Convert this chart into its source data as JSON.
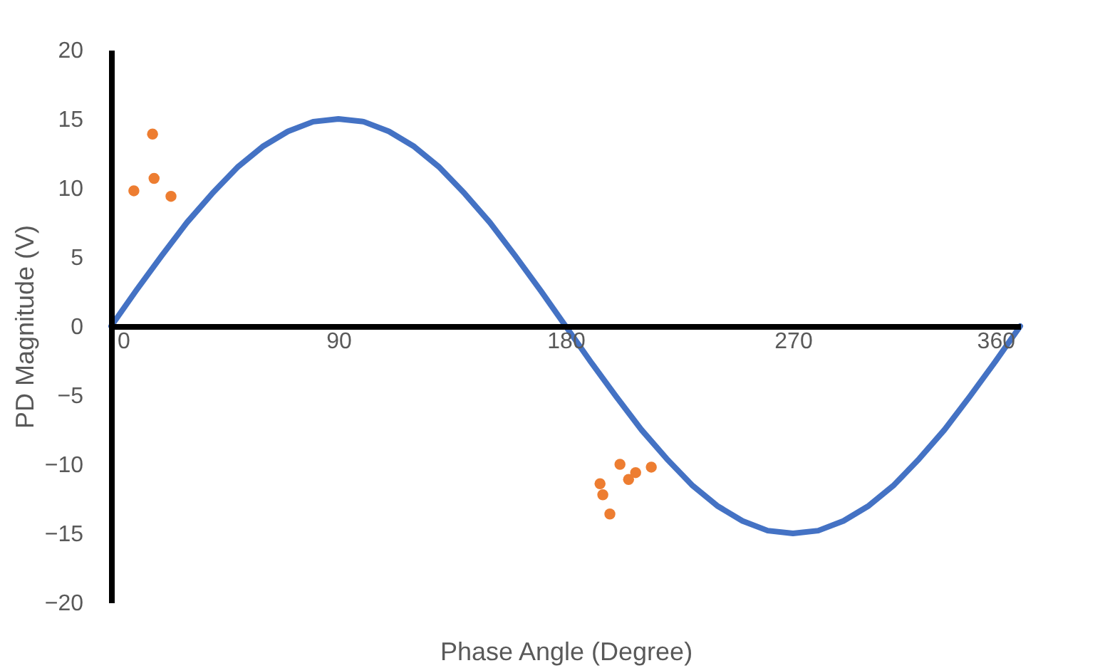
{
  "chart_data": {
    "type": "line",
    "xlabel": "Phase Angle (Degree)",
    "ylabel": "PD Magnitude (V)",
    "xlim": [
      0,
      360
    ],
    "ylim": [
      -20,
      20
    ],
    "xticks": [
      0,
      90,
      180,
      270,
      360
    ],
    "yticks": [
      -20,
      -15,
      -10,
      -5,
      0,
      5,
      10,
      15,
      20
    ],
    "grid": false,
    "series": [
      {
        "color": "#4472c4",
        "marker": "none",
        "line_style": "solid",
        "x": [
          0,
          10,
          20,
          30,
          40,
          50,
          60,
          70,
          80,
          90,
          100,
          110,
          120,
          130,
          140,
          150,
          160,
          170,
          180,
          190,
          200,
          210,
          220,
          230,
          240,
          250,
          260,
          270,
          280,
          290,
          300,
          310,
          320,
          330,
          340,
          350,
          360
        ],
        "values": [
          0,
          2.6,
          5.1,
          7.5,
          9.6,
          11.5,
          13,
          14.1,
          14.8,
          15,
          14.8,
          14.1,
          13,
          11.5,
          9.6,
          7.5,
          5.1,
          2.6,
          0,
          -2.6,
          -5.1,
          -7.5,
          -9.6,
          -11.5,
          -13,
          -14.1,
          -14.8,
          -15,
          -14.8,
          -14.1,
          -13,
          -11.5,
          -9.6,
          -7.5,
          -5.1,
          -2.6,
          0
        ]
      },
      {
        "type": "scatter",
        "color": "#ed7d31",
        "marker": "circle",
        "x": [
          9,
          16.4,
          17,
          23.7,
          193.6,
          194.7,
          197.5,
          201.5,
          204.9,
          207.7,
          213.9
        ],
        "values": [
          9.8,
          13.9,
          10.7,
          9.4,
          -11.4,
          -12.2,
          -13.6,
          -10,
          -11.1,
          -10.6,
          -10.2
        ]
      }
    ]
  }
}
